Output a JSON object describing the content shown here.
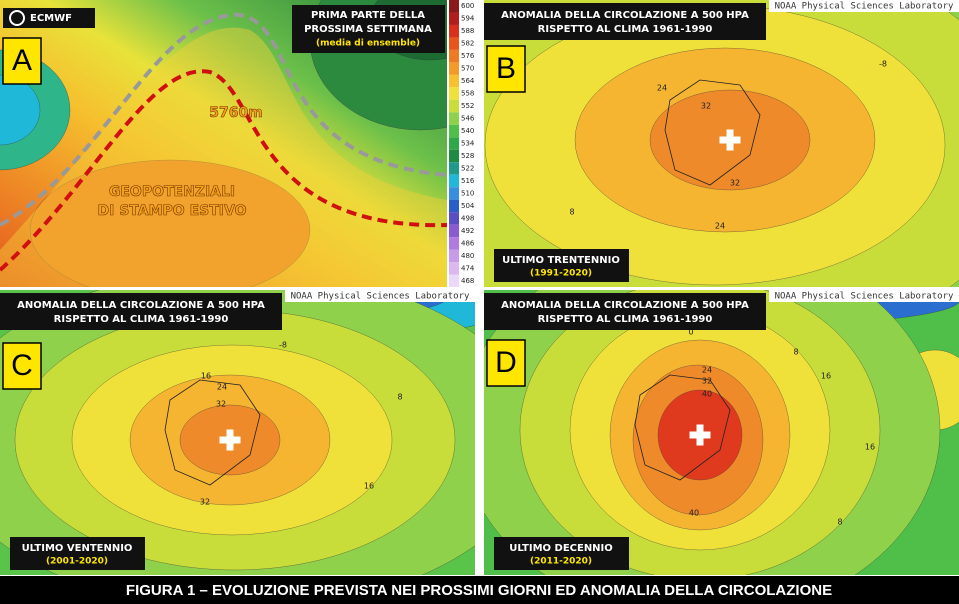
{
  "panels": [
    {
      "letter": "A",
      "logo": "ECMWF",
      "title": [
        "PRIMA PARTE DELLA",
        "PROSSIMA SETTIMANA"
      ],
      "subtitle": "(media di ensemble)",
      "annotations": [
        "5760m",
        "GEOPOTENZIALI",
        "DI STAMPO ESTIVO"
      ],
      "colorbar": [
        600,
        594,
        588,
        582,
        576,
        570,
        564,
        558,
        552,
        546,
        540,
        534,
        528,
        522,
        516,
        510,
        504,
        498,
        492,
        486,
        480,
        474,
        468
      ]
    },
    {
      "letter": "B",
      "title": [
        "ANOMALIA DELLA CIRCOLAZIONE A 500 HPA",
        "RISPETTO AL CLIMA 1961-1990"
      ],
      "credit": "NOAA Physical Sciences Laboratory",
      "period": "ULTIMO TRENTENNIO",
      "years": "(1991-2020)",
      "contour_labels": [
        "24",
        "32",
        "32",
        "24",
        "8",
        "-8"
      ]
    },
    {
      "letter": "C",
      "title": [
        "ANOMALIA DELLA CIRCOLAZIONE A 500 HPA",
        "RISPETTO AL CLIMA 1961-1990"
      ],
      "credit": "NOAA Physical Sciences Laboratory",
      "period": "ULTIMO VENTENNIO",
      "years": "(2001-2020)",
      "contour_labels": [
        "-8",
        "16",
        "24",
        "32",
        "32",
        "8",
        "16"
      ]
    },
    {
      "letter": "D",
      "title": [
        "ANOMALIA DELLA CIRCOLAZIONE A 500 HPA",
        "RISPETTO AL CLIMA 1961-1990"
      ],
      "credit": "NOAA Physical Sciences Laboratory",
      "period": "ULTIMO DECENNIO",
      "years": "(2011-2020)",
      "contour_labels": [
        "0",
        "24",
        "32",
        "40",
        "40",
        "8",
        "16",
        "16",
        "8"
      ]
    }
  ],
  "caption": "FIGURA 1 – EVOLUZIONE PREVISTA NEI PROSSIMI GIORNI ED ANOMALIA DELLA CIRCOLAZIONE"
}
